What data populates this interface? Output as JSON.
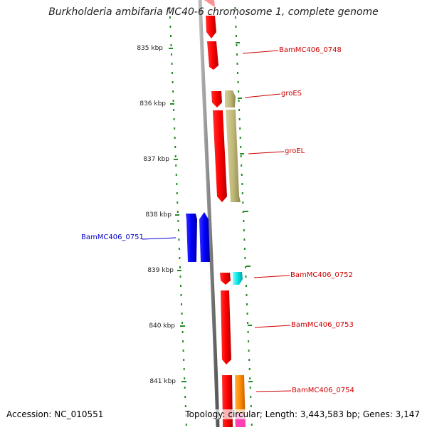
{
  "title": "Burkholderia ambifaria MC40-6 chromosome 1, complete genome",
  "footer": {
    "accession": "Accession: NC_010551",
    "topology": "Topology: circular; Length: 3,443,583 bp; Genes: 3,147"
  },
  "ticks": [
    {
      "label": "835 kbp"
    },
    {
      "label": "836 kbp"
    },
    {
      "label": "837 kbp"
    },
    {
      "label": "838 kbp"
    },
    {
      "label": "839 kbp"
    },
    {
      "label": "840 kbp"
    },
    {
      "label": "841 kbp"
    }
  ],
  "genes": [
    {
      "name": "BamMC406_0748",
      "strand": "reverse",
      "color": "#ff0000"
    },
    {
      "name": "groES",
      "strand": "forward",
      "color": "#bfb878"
    },
    {
      "name": "groEL",
      "strand": "forward",
      "color": "#bfb878"
    },
    {
      "name": "BamMC406_0751",
      "strand": "reverse",
      "color": "#0000ff"
    },
    {
      "name": "BamMC406_0752",
      "strand": "forward",
      "color": "#00e5e5"
    },
    {
      "name": "BamMC406_0753",
      "strand": "forward",
      "color": "#ff0000"
    },
    {
      "name": "BamMC406_0754",
      "strand": "forward",
      "color": "#ff8c00"
    }
  ],
  "colors": {
    "backbone": "#888888",
    "tick": "#228b22",
    "label_red": "#cc0000",
    "label_blue": "#0000cc"
  }
}
